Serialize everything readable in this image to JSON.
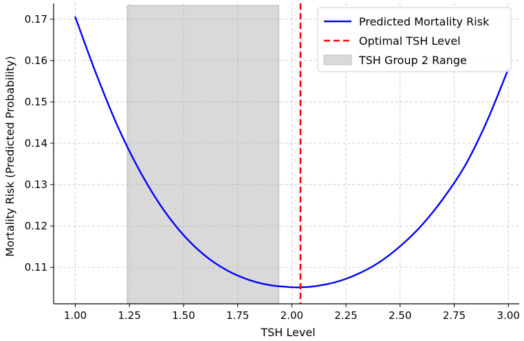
{
  "chart_data": {
    "type": "line",
    "title": "",
    "xlabel": "TSH Level",
    "ylabel": "Mortality Risk (Predicted Probability)",
    "xlim": [
      0.9,
      3.05
    ],
    "ylim": [
      0.1012,
      0.1738
    ],
    "xticks": [
      1.0,
      1.25,
      1.5,
      1.75,
      2.0,
      2.25,
      2.5,
      2.75,
      3.0
    ],
    "xtick_labels": [
      "1.00",
      "1.25",
      "1.50",
      "1.75",
      "2.00",
      "2.25",
      "2.50",
      "2.75",
      "3.00"
    ],
    "yticks": [
      0.11,
      0.12,
      0.13,
      0.14,
      0.15,
      0.16,
      0.17
    ],
    "ytick_labels": [
      "0.11",
      "0.12",
      "0.13",
      "0.14",
      "0.15",
      "0.16",
      "0.17"
    ],
    "grid": true,
    "legend_position": "top-right",
    "series": [
      {
        "name": "Predicted Mortality Risk",
        "kind": "line",
        "color": "#0000ff",
        "x": [
          1.0,
          1.1,
          1.2,
          1.3,
          1.4,
          1.5,
          1.6,
          1.7,
          1.8,
          1.9,
          2.0,
          2.04,
          2.1,
          2.2,
          2.3,
          2.4,
          2.5,
          2.6,
          2.7,
          2.8,
          2.9,
          3.0
        ],
        "y": [
          0.1705,
          0.1563,
          0.1436,
          0.1331,
          0.1245,
          0.1178,
          0.1128,
          0.1093,
          0.107,
          0.1057,
          0.1052,
          0.1052,
          0.1054,
          0.1064,
          0.1083,
          0.1111,
          0.1151,
          0.1202,
          0.1267,
          0.1346,
          0.1452,
          0.158
        ]
      },
      {
        "name": "Optimal TSH Level",
        "kind": "vline",
        "color": "#ff0000",
        "x": 2.04
      },
      {
        "name": "TSH Group 2 Range",
        "kind": "span",
        "color": "#d9d9d9",
        "x_range": [
          1.24,
          1.94
        ]
      }
    ]
  }
}
